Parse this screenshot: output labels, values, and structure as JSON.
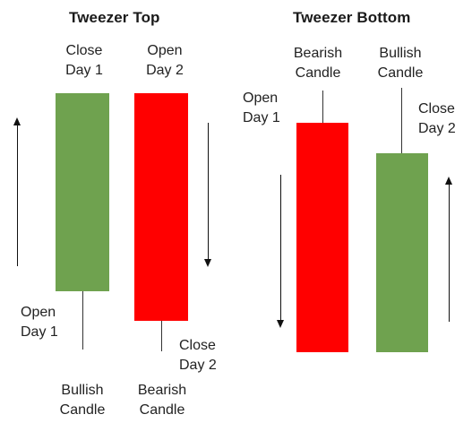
{
  "tweezer_top": {
    "title": "Tweezer Top",
    "close_day1": [
      "Close",
      "Day 1"
    ],
    "open_day2": [
      "Open",
      "Day 2"
    ],
    "open_day1": [
      "Open",
      "Day 1"
    ],
    "close_day2": [
      "Close",
      "Day 2"
    ],
    "bullish_candle": [
      "Bullish",
      "Candle"
    ],
    "bearish_candle": [
      "Bearish",
      "Candle"
    ]
  },
  "tweezer_bottom": {
    "title": "Tweezer Bottom",
    "bearish_candle": [
      "Bearish",
      "Candle"
    ],
    "bullish_candle": [
      "Bullish",
      "Candle"
    ],
    "open_day1": [
      "Open",
      "Day 1"
    ],
    "close_day2": [
      "Close",
      "Day 2"
    ]
  },
  "colors": {
    "bullish": "#6fa24f",
    "bearish": "#ff0000",
    "wick": "#333333",
    "arrow": "#111111"
  }
}
